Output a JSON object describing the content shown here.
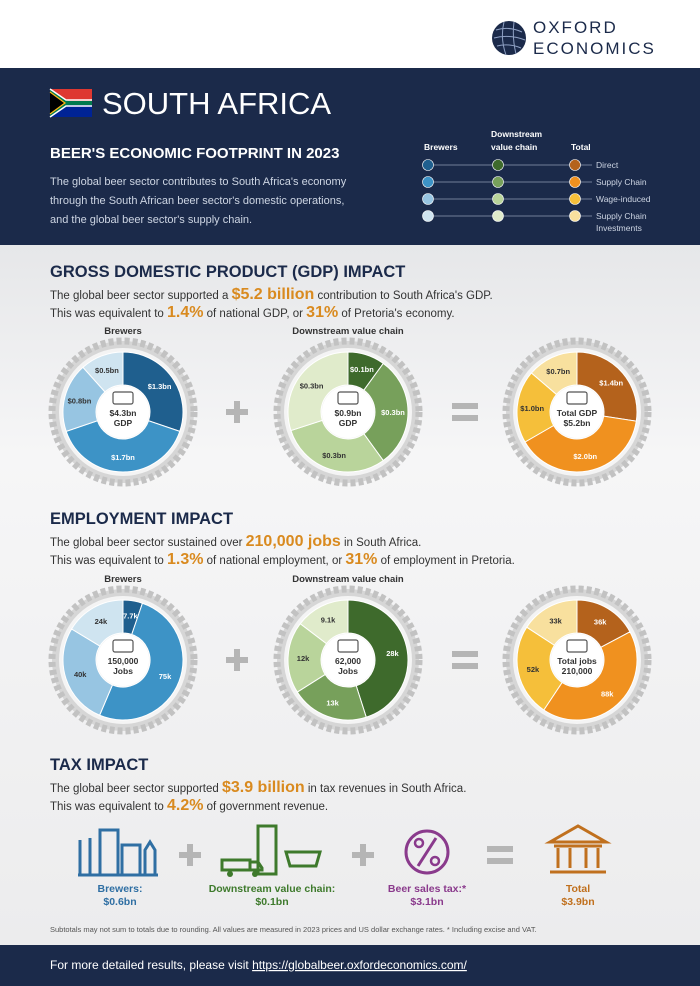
{
  "header": {
    "brand_lines": [
      "OXFORD",
      "ECONOMICS"
    ]
  },
  "banner": {
    "country": "SOUTH AFRICA",
    "title": "BEER'S ECONOMIC FOOTPRINT IN 2023",
    "text_lines": [
      "The global beer sector contributes to South Africa's economy",
      "through the South African beer sector's domestic operations,",
      "and the global beer sector's supply chain."
    ],
    "legend": {
      "columns": [
        [
          "Brewers"
        ],
        [
          "Downstream",
          "value chain"
        ],
        [
          "Total"
        ]
      ],
      "rows": [
        [
          "Direct"
        ],
        [
          "Supply Chain"
        ],
        [
          "Wage-induced"
        ],
        [
          "Supply Chain",
          "Investments"
        ]
      ],
      "colors": [
        [
          "#1f5f8e",
          "#3d93c6",
          "#97c5e2",
          "#cfe4f0"
        ],
        [
          "#3e6a2c",
          "#77a05b",
          "#b9d49b",
          "#e0ebcb"
        ],
        [
          "#b4621c",
          "#f0911f",
          "#f5bf3a",
          "#f8e09e"
        ]
      ]
    }
  },
  "gdp": {
    "title": "GROSS DOMESTIC PRODUCT (GDP) IMPACT",
    "lines": [
      [
        "The global beer sector supported a ",
        "$5.2 billion",
        " contribution to South Africa's GDP."
      ],
      [
        "This was equivalent to ",
        "1.4%",
        " of national GDP, or ",
        "31%",
        " of Pretoria's economy."
      ]
    ],
    "charts": [
      {
        "title": "Brewers",
        "center": [
          "$4.3bn",
          "GDP"
        ],
        "segments": [
          {
            "value": 1.3,
            "label": "$1.3bn"
          },
          {
            "value": 1.7,
            "label": "$1.7bn"
          },
          {
            "value": 0.8,
            "label": "$0.8bn"
          },
          {
            "value": 0.5,
            "label": "$0.5bn"
          }
        ]
      },
      {
        "title": "Downstream value chain",
        "center": [
          "$0.9bn",
          "GDP"
        ],
        "segments": [
          {
            "value": 0.1,
            "label": "$0.1bn"
          },
          {
            "value": 0.3,
            "label": "$0.3bn"
          },
          {
            "value": 0.3,
            "label": "$0.3bn"
          },
          {
            "value": 0.3,
            "label": "$0.3bn"
          }
        ]
      },
      {
        "center": [
          "Total GDP",
          "$5.2bn"
        ],
        "segments": [
          {
            "value": 1.4,
            "label": "$1.4bn"
          },
          {
            "value": 2.0,
            "label": "$2.0bn"
          },
          {
            "value": 1.0,
            "label": "$1.0bn"
          },
          {
            "value": 0.7,
            "label": "$0.7bn"
          }
        ]
      }
    ]
  },
  "employment": {
    "title": "EMPLOYMENT IMPACT",
    "lines": [
      [
        "The global beer sector sustained over ",
        "210,000 jobs",
        " in South Africa."
      ],
      [
        "This was equivalent to ",
        "1.3%",
        " of national employment, or ",
        "31%",
        " of employment in Pretoria."
      ]
    ],
    "charts": [
      {
        "title": "Brewers",
        "center": [
          "150,000",
          "Jobs"
        ],
        "segments": [
          {
            "value": 7.7,
            "label": "7.7k"
          },
          {
            "value": 75,
            "label": "75k"
          },
          {
            "value": 40,
            "label": "40k"
          },
          {
            "value": 24,
            "label": "24k"
          }
        ]
      },
      {
        "title": "Downstream value chain",
        "center": [
          "62,000",
          "Jobs"
        ],
        "segments": [
          {
            "value": 28,
            "label": "28k"
          },
          {
            "value": 13,
            "label": "13k"
          },
          {
            "value": 12,
            "label": "12k"
          },
          {
            "value": 9.1,
            "label": "9.1k"
          }
        ]
      },
      {
        "center": [
          "Total jobs",
          "210,000"
        ],
        "segments": [
          {
            "value": 36,
            "label": "36k"
          },
          {
            "value": 88,
            "label": "88k"
          },
          {
            "value": 52,
            "label": "52k"
          },
          {
            "value": 33,
            "label": "33k"
          }
        ]
      }
    ]
  },
  "tax": {
    "title": "TAX IMPACT",
    "lines": [
      [
        "The global beer sector supported ",
        "$3.9 billion",
        " in tax revenues in South Africa."
      ],
      [
        "This was equivalent to ",
        "4.2%",
        " of government revenue."
      ]
    ],
    "items": [
      {
        "lines": [
          "Brewers:",
          "$0.6bn"
        ]
      },
      {
        "lines": [
          "Downstream value chain:",
          "$0.1bn"
        ]
      },
      {
        "lines": [
          "Beer sales tax:*",
          "$3.1bn"
        ]
      },
      {
        "lines": [
          "Total",
          "$3.9bn"
        ]
      }
    ]
  },
  "footnote": "Subtotals may not sum to totals due to rounding. All values are measured in 2023 prices and US dollar exchange rates.  * Including excise and VAT.",
  "footer": {
    "text": "For more detailed results, please visit ",
    "link": "https://globalbeer.oxfordeconomics.com/"
  }
}
